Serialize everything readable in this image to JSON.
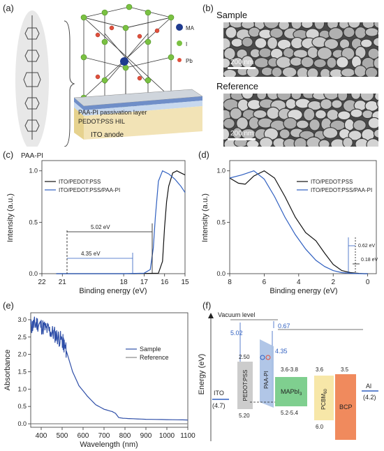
{
  "panels": {
    "a": "(a)",
    "b": "(b)",
    "c": "(c)",
    "d": "(d)",
    "e": "(e)",
    "f": "(f)"
  },
  "panel_a": {
    "molecule_label": "PAA-PI",
    "legend": [
      {
        "label": "MA",
        "color": "#1f3b8f"
      },
      {
        "label": "I",
        "color": "#7ac142"
      },
      {
        "label": "Pb",
        "color": "#e0503c"
      }
    ],
    "layers": {
      "passivation": "PAA-PI passivation layer",
      "hil": "PEDOT:PSS  HIL",
      "anode": "ITO anode"
    }
  },
  "panel_b": {
    "sample_label": "Sample",
    "reference_label": "Reference",
    "scale_sample": "200 nm",
    "scale_reference": "200 nm"
  },
  "panel_c": {
    "xlabel": "Binding energy (eV)",
    "ylabel": "Intensity (a.u.)",
    "xticks": [
      "22",
      "21",
      "18",
      "17",
      "16",
      "15"
    ],
    "yticks": [
      "0.0",
      "0.5",
      "1.0"
    ],
    "legend": [
      "ITO/PEDOT:PSS",
      "ITO/PEDOT:PSS/PAA-PI"
    ],
    "annot1": "5.02 eV",
    "annot2": "4.35 eV"
  },
  "panel_d": {
    "xlabel": "Binding energy (eV)",
    "ylabel": "Intensity (a.u.)",
    "xticks": [
      "8",
      "6",
      "4",
      "2",
      "0"
    ],
    "yticks": [
      "0.0",
      "0.5",
      "1.0"
    ],
    "legend": [
      "ITO/PEDOT:PSS",
      "ITO/PEDOT:PSS/PAA-PI"
    ],
    "annot1": "0.62 eV",
    "annot2": "0.18 eV"
  },
  "panel_e": {
    "xlabel": "Wavelength (nm)",
    "ylabel": "Absorbance",
    "xticks": [
      "400",
      "500",
      "600",
      "700",
      "800",
      "900",
      "1000",
      "1100"
    ],
    "yticks": [
      "0.0",
      "0.5",
      "1.0",
      "1.5",
      "2.0",
      "2.5",
      "3.0"
    ],
    "legend": [
      "Sample",
      "Reference"
    ]
  },
  "panel_f": {
    "ylabel": "Energy (eV)",
    "vacuum": "Vacuum level",
    "v502": "5.02",
    "v067": "0.67",
    "v435": "4.35",
    "ito": "ITO",
    "ito_val": "(4.7)",
    "pedot": "PEDOT:PSS",
    "pedot_top": "2.50",
    "pedot_bot": "5.20",
    "paapi": "PAA-PI",
    "ef": "E",
    "ef_sub": "F",
    "mapbi": "MAPbI",
    "mapbi_sub": "3",
    "mapbi_top": "3.6-3.8",
    "mapbi_bot": "5.2-5.4",
    "pcbm": "PCBM",
    "pcbm_sub": "60",
    "pcbm_top": "3.6",
    "pcbm_bot": "6.0",
    "bcp": "BCP",
    "bcp_top": "3.5",
    "al": "Al",
    "al_val": "(4.2)"
  },
  "chart_data": [
    {
      "type": "line",
      "panel": "c",
      "xlabel": "Binding energy (eV)",
      "ylabel": "Intensity (a.u.)",
      "xlim": [
        22,
        15
      ],
      "ylim": [
        0,
        1.1
      ],
      "series": [
        {
          "name": "ITO/PEDOT:PSS",
          "color": "#111111",
          "x": [
            21.3,
            17.5,
            16.3,
            16.1,
            16.0,
            15.9,
            15.8,
            15.6,
            15.4,
            15.2,
            15.0
          ],
          "y": [
            0.0,
            0.0,
            0.005,
            0.12,
            0.45,
            0.7,
            0.85,
            0.98,
            1.0,
            0.98,
            0.96
          ]
        },
        {
          "name": "ITO/PEDOT:PSS/PAA-PI",
          "color": "#2f5fc0",
          "x": [
            21.3,
            18.0,
            17.0,
            16.7,
            16.55,
            16.45,
            16.3,
            16.1,
            15.8,
            15.5,
            15.2,
            15.0
          ],
          "y": [
            0.0,
            0.0,
            0.005,
            0.04,
            0.25,
            0.55,
            0.9,
            1.0,
            0.97,
            0.92,
            0.85,
            0.79
          ]
        }
      ]
    },
    {
      "type": "line",
      "panel": "d",
      "xlabel": "Binding energy (eV)",
      "ylabel": "Intensity (a.u.)",
      "xlim": [
        8,
        -0.5
      ],
      "ylim": [
        0,
        1.1
      ],
      "series": [
        {
          "name": "ITO/PEDOT:PSS",
          "color": "#111111",
          "x": [
            8.0,
            7.5,
            7.1,
            6.6,
            6.0,
            5.4,
            4.8,
            4.2,
            3.6,
            3.0,
            2.5,
            2.0,
            1.5,
            1.0,
            0.5,
            0.2,
            0.0
          ],
          "y": [
            0.93,
            0.88,
            0.87,
            0.95,
            1.0,
            0.93,
            0.75,
            0.55,
            0.4,
            0.32,
            0.2,
            0.09,
            0.03,
            0.01,
            0.003,
            0.0,
            0.0
          ]
        },
        {
          "name": "ITO/PEDOT:PSS/PAA-PI",
          "color": "#2f5fc0",
          "x": [
            8.0,
            7.3,
            6.6,
            6.0,
            5.4,
            4.8,
            4.2,
            3.6,
            3.0,
            2.5,
            2.0,
            1.5,
            1.0,
            0.6,
            0.3,
            0.0
          ],
          "y": [
            0.93,
            0.96,
            1.0,
            0.92,
            0.75,
            0.55,
            0.38,
            0.24,
            0.13,
            0.07,
            0.03,
            0.01,
            0.004,
            0.001,
            0.0,
            0.0
          ]
        }
      ]
    },
    {
      "type": "line",
      "panel": "e",
      "xlabel": "Wavelength (nm)",
      "ylabel": "Absorbance",
      "xlim": [
        350,
        1100
      ],
      "ylim": [
        -0.1,
        3.2
      ],
      "series": [
        {
          "name": "Sample",
          "color": "#2f4fa8",
          "x": [
            350,
            380,
            420,
            460,
            500,
            520,
            550,
            580,
            620,
            660,
            700,
            740,
            755,
            770,
            790,
            820,
            900,
            1000,
            1100
          ],
          "y": [
            2.8,
            2.9,
            2.75,
            2.6,
            2.4,
            2.1,
            1.5,
            1.1,
            0.8,
            0.55,
            0.42,
            0.35,
            0.3,
            0.18,
            0.16,
            0.15,
            0.13,
            0.12,
            0.11
          ]
        },
        {
          "name": "Reference",
          "color": "#888888",
          "x": [
            350,
            1100
          ],
          "y": [
            0.0,
            0.0
          ]
        }
      ]
    }
  ]
}
